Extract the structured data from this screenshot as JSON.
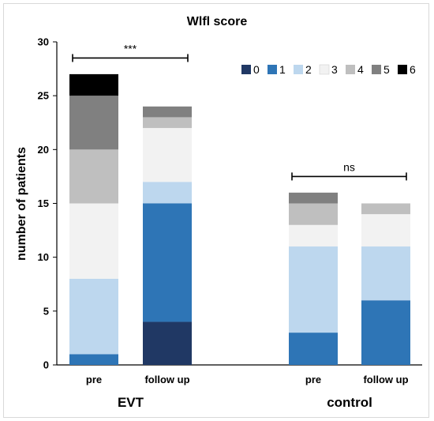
{
  "chart_data": {
    "type": "bar",
    "stacked": true,
    "title": "Wlfl score",
    "ylabel": "number of patients",
    "xlabel": "",
    "ylim": [
      0,
      30
    ],
    "yticks": [
      0,
      5,
      10,
      15,
      20,
      25,
      30
    ],
    "grid": false,
    "legend_position": "top-right",
    "categories": [
      "pre",
      "follow up",
      "pre",
      "follow up"
    ],
    "groups": [
      {
        "label": "EVT",
        "categories": [
          0,
          1
        ]
      },
      {
        "label": "control",
        "categories": [
          2,
          3
        ]
      }
    ],
    "series": [
      {
        "name": "0",
        "color": "#203864",
        "values": [
          0,
          4,
          0,
          0
        ]
      },
      {
        "name": "1",
        "color": "#2e75b6",
        "values": [
          1,
          11,
          3,
          6
        ]
      },
      {
        "name": "2",
        "color": "#bdd7ee",
        "values": [
          7,
          2,
          8,
          5
        ]
      },
      {
        "name": "3",
        "color": "#f2f2f2",
        "values": [
          7,
          5,
          2,
          3
        ]
      },
      {
        "name": "4",
        "color": "#bfbfbf",
        "values": [
          5,
          1,
          2,
          1
        ]
      },
      {
        "name": "5",
        "color": "#808080",
        "values": [
          5,
          1,
          1,
          0
        ]
      },
      {
        "name": "6",
        "color": "#000000",
        "values": [
          2,
          0,
          0,
          0
        ]
      }
    ],
    "annotations": [
      {
        "text": "***",
        "from": 0,
        "to": 1,
        "y": 28.5
      },
      {
        "text": "ns",
        "from": 2,
        "to": 3,
        "y": 17.5
      }
    ]
  }
}
